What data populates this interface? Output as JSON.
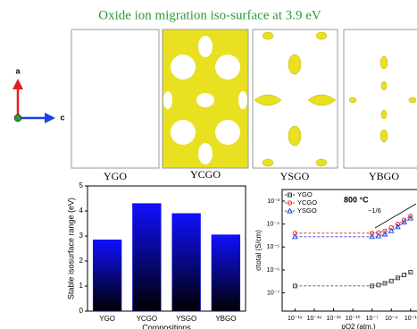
{
  "title": "Oxide ion migration iso-surface at 3.9 eV",
  "axes_labels": {
    "a": "a",
    "c": "c"
  },
  "panels": [
    "YGO",
    "YCGO",
    "YSGO",
    "YBGO"
  ],
  "chart_data": [
    {
      "type": "bar",
      "categories": [
        "YGO",
        "YCGO",
        "YSGO",
        "YBGO"
      ],
      "values": [
        2.85,
        4.3,
        3.9,
        3.05
      ],
      "color": "#1010ff",
      "ylabel": "Stable isosurface range (eV)",
      "xlabel": "Compositions",
      "ylim": [
        0,
        5
      ],
      "yticks": [
        0,
        1,
        2,
        3,
        4,
        5
      ]
    },
    {
      "type": "line",
      "log_x": true,
      "log_y": true,
      "xlabel": "pO2 (atm.)",
      "ylabel": "σtotal (S/cm)",
      "annotations": [
        "800 °C",
        "~1/6"
      ],
      "x": [
        1e-19,
        1e-07,
        1e-06,
        1e-05,
        0.0001,
        0.001,
        0.01,
        0.1
      ],
      "series": [
        {
          "name": "YGO",
          "color": "#333333",
          "marker": "square",
          "values": [
            2e-07,
            2e-07,
            2.2e-07,
            2.6e-07,
            3.3e-07,
            4.5e-07,
            6e-07,
            8e-07
          ]
        },
        {
          "name": "YCGO",
          "color": "#e02020",
          "marker": "circle",
          "values": [
            4e-05,
            4e-05,
            4.2e-05,
            5e-05,
            7e-05,
            0.0001,
            0.00015,
            0.00022
          ]
        },
        {
          "name": "YSGO",
          "color": "#2040e0",
          "marker": "triangle",
          "values": [
            2.8e-05,
            2.8e-05,
            3e-05,
            3.6e-05,
            5e-05,
            7.5e-05,
            0.00012,
            0.00018
          ]
        }
      ],
      "xlim": [
        1e-21,
        1
      ],
      "xticks": [
        {
          "value": 1e-19,
          "label": "10⁻¹⁹"
        },
        {
          "value": 1e-16,
          "label": "10⁻¹⁶"
        },
        {
          "value": 1e-13,
          "label": "10⁻¹³"
        },
        {
          "value": 1e-10,
          "label": "10⁻¹⁰"
        },
        {
          "value": 1e-07,
          "label": "10⁻⁷"
        },
        {
          "value": 0.0001,
          "label": "10⁻⁴"
        },
        {
          "value": 0.1,
          "label": "10⁻¹"
        }
      ],
      "ylim": [
        1.6e-08,
        0.0032
      ],
      "yticks": [
        {
          "value": 1e-07,
          "label": "10⁻⁷"
        },
        {
          "value": 1e-06,
          "label": "10⁻⁶"
        },
        {
          "value": 1e-05,
          "label": "10⁻⁵"
        },
        {
          "value": 0.0001,
          "label": "10⁻⁴"
        },
        {
          "value": 0.001,
          "label": "10⁻³"
        }
      ],
      "legend": "upper left"
    }
  ]
}
